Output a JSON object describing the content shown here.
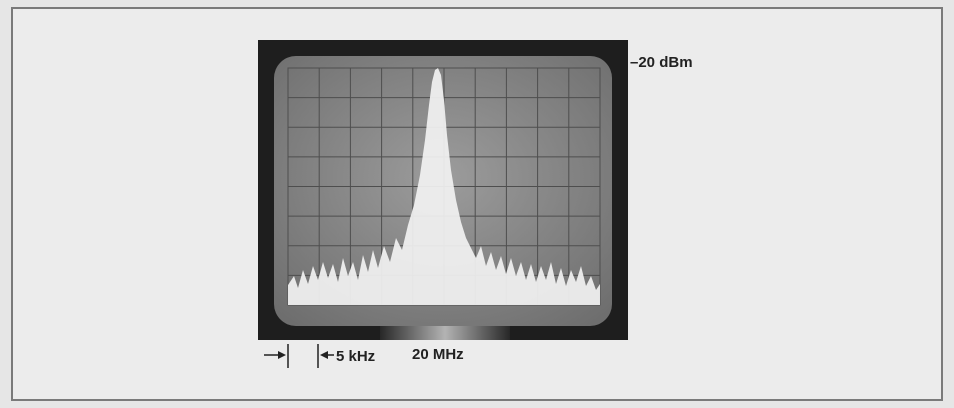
{
  "figure": {
    "reference_level": "–20 dBm",
    "span_label": "5 kHz",
    "center_label": "20 MHz"
  }
}
